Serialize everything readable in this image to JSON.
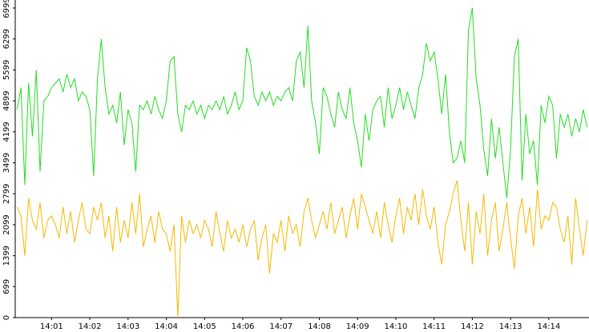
{
  "chart_data": {
    "type": "line",
    "ylim": [
      0,
      6999
    ],
    "yticks": [
      0,
      699,
      1399,
      2099,
      2799,
      3499,
      4199,
      4899,
      5599,
      6299,
      6999
    ],
    "categories": [
      null,
      null,
      null,
      null,
      null,
      null,
      null,
      null,
      null,
      "14:01",
      null,
      null,
      null,
      null,
      null,
      null,
      null,
      null,
      null,
      "14:02",
      null,
      null,
      null,
      null,
      null,
      null,
      null,
      null,
      null,
      "14:03",
      null,
      null,
      null,
      null,
      null,
      null,
      null,
      null,
      null,
      "14:04",
      null,
      null,
      null,
      null,
      null,
      null,
      null,
      null,
      null,
      "14:05",
      null,
      null,
      null,
      null,
      null,
      null,
      null,
      null,
      null,
      "14:06",
      null,
      null,
      null,
      null,
      null,
      null,
      null,
      null,
      null,
      "14:07",
      null,
      null,
      null,
      null,
      null,
      null,
      null,
      null,
      null,
      "14:08",
      null,
      null,
      null,
      null,
      null,
      null,
      null,
      null,
      null,
      "14:09",
      null,
      null,
      null,
      null,
      null,
      null,
      null,
      null,
      null,
      "14:10",
      null,
      null,
      null,
      null,
      null,
      null,
      null,
      null,
      null,
      "14:11",
      null,
      null,
      null,
      null,
      null,
      null,
      null,
      null,
      null,
      "14:12",
      null,
      null,
      null,
      null,
      null,
      null,
      null,
      null,
      null,
      "14:13",
      null,
      null,
      null,
      null,
      null,
      null,
      null,
      null,
      null,
      "14:14",
      null,
      null,
      null,
      null,
      null,
      null,
      null,
      null,
      null,
      null
    ],
    "series": [
      {
        "color": "#22dd22",
        "values": [
          4700,
          5200,
          3000,
          5300,
          4100,
          5600,
          3300,
          4900,
          5000,
          5200,
          5300,
          5400,
          5100,
          5500,
          5200,
          5400,
          4900,
          5100,
          5000,
          4700,
          3200,
          5400,
          6300,
          5200,
          4600,
          4800,
          4400,
          5100,
          3900,
          4700,
          4400,
          3300,
          4800,
          4700,
          4900,
          4600,
          5000,
          4700,
          4500,
          4900,
          5800,
          5900,
          4600,
          4200,
          4800,
          4700,
          4900,
          4600,
          4800,
          4500,
          4800,
          4700,
          4900,
          4700,
          5000,
          4600,
          4800,
          5100,
          4700,
          4900,
          6100,
          5800,
          5000,
          4800,
          5100,
          4900,
          5100,
          4800,
          5000,
          4900,
          5100,
          5200,
          4900,
          5800,
          6000,
          5200,
          6600,
          4900,
          4400,
          3700,
          5200,
          5000,
          4600,
          4300,
          5100,
          4700,
          4500,
          5200,
          4400,
          4000,
          3400,
          4600,
          4000,
          4700,
          4900,
          5000,
          4300,
          5200,
          4500,
          4800,
          5200,
          4700,
          5100,
          4800,
          4500,
          5200,
          5500,
          6200,
          5800,
          6000,
          5400,
          4600,
          5500,
          4200,
          3500,
          3600,
          4000,
          3500,
          6500,
          7000,
          5400,
          4800,
          3800,
          3200,
          4500,
          3600,
          4300,
          3500,
          2700,
          3800,
          5900,
          6300,
          3100,
          4600,
          3700,
          4000,
          3000,
          4800,
          4400,
          5000,
          4800,
          3600,
          4600,
          4300,
          4600,
          4100,
          4500,
          4200,
          4700,
          4300
        ]
      },
      {
        "color": "#f5b800",
        "values": [
          2500,
          2300,
          1400,
          2700,
          2200,
          2000,
          2600,
          1800,
          2200,
          2300,
          2100,
          1800,
          2500,
          1900,
          2400,
          1700,
          2200,
          2600,
          2000,
          1900,
          2500,
          2200,
          2600,
          1800,
          2300,
          1500,
          2500,
          1700,
          2200,
          1800,
          2600,
          1900,
          2800,
          1600,
          2000,
          2300,
          1700,
          2400,
          2000,
          1900,
          1500,
          2100,
          0,
          2300,
          1700,
          2200,
          1900,
          2100,
          1800,
          2200,
          2000,
          1600,
          2400,
          1900,
          1500,
          2200,
          1800,
          2000,
          1700,
          2100,
          1600,
          2000,
          2200,
          1300,
          1800,
          2100,
          1000,
          1900,
          1700,
          2200,
          1500,
          2300,
          1900,
          2100,
          1600,
          2400,
          2700,
          2200,
          1800,
          2100,
          2400,
          2000,
          2600,
          1900,
          2200,
          2500,
          1800,
          2300,
          2700,
          2000,
          2800,
          2500,
          2200,
          1900,
          2400,
          1800,
          2600,
          2100,
          1700,
          2300,
          2700,
          1900,
          2500,
          2200,
          2800,
          2100,
          2900,
          2300,
          2000,
          2500,
          1700,
          1200,
          2100,
          2400,
          2800,
          3100,
          2200,
          1500,
          2600,
          1200,
          2400,
          1900,
          2800,
          1400,
          2200,
          2600,
          1500,
          2000,
          2600,
          1800,
          1100,
          2300,
          2700,
          1900,
          2500,
          1600,
          2900,
          2000,
          2300,
          2200,
          2600,
          2500,
          2000,
          1700,
          2300,
          1200,
          2700,
          2000,
          1400,
          2200
        ]
      }
    ]
  }
}
